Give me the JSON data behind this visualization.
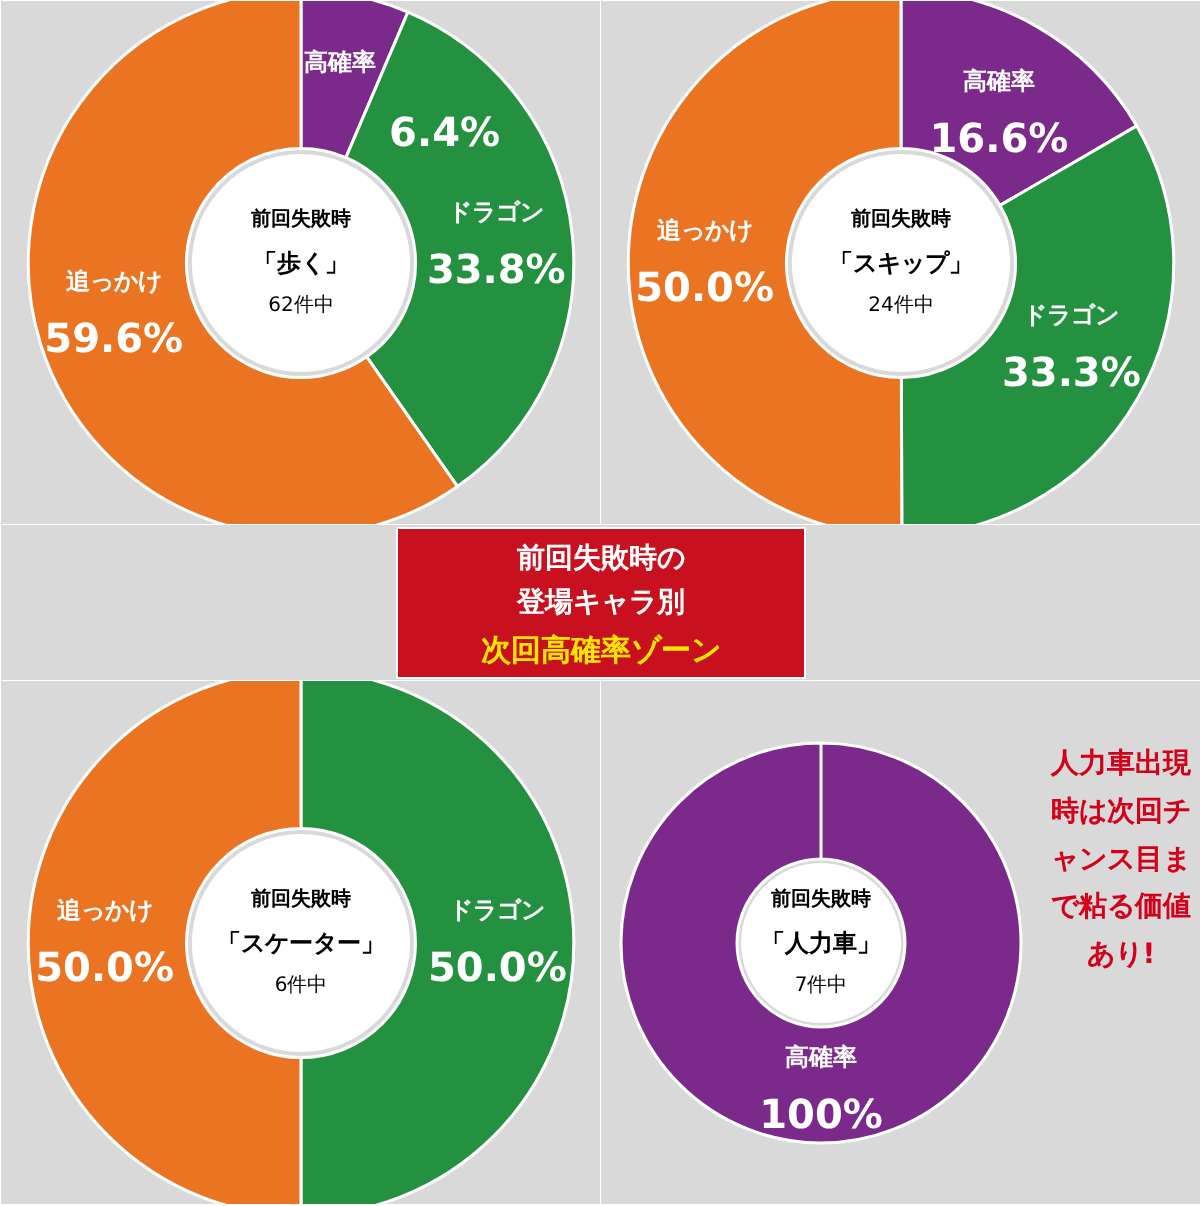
{
  "chart_data": [
    {
      "type": "donut",
      "title": "前回失敗時",
      "subtitle": "「歩く」",
      "annotations": [
        "62件中"
      ],
      "categories": [
        "高確率",
        "ドラゴン",
        "追っかけ"
      ],
      "values": [
        6.4,
        33.8,
        59.6
      ],
      "value_labels": [
        "6.4%",
        "33.8%",
        "59.6%"
      ],
      "colors": [
        "#7b2a8c",
        "#23913f",
        "#ea7422"
      ]
    },
    {
      "type": "donut",
      "title": "前回失敗時",
      "subtitle": "「スキップ」",
      "annotations": [
        "24件中"
      ],
      "categories": [
        "高確率",
        "ドラゴン",
        "追っかけ"
      ],
      "values": [
        16.6,
        33.3,
        50.0
      ],
      "value_labels": [
        "16.6%",
        "33.3%",
        "50.0%"
      ],
      "colors": [
        "#7b2a8c",
        "#23913f",
        "#ea7422"
      ]
    },
    {
      "type": "other",
      "title": "前回失敗時の",
      "subtitle": "登場キャラ別",
      "annotations": [
        "次回高確率ゾーン"
      ]
    },
    {
      "type": "donut",
      "title": "前回失敗時",
      "subtitle": "「スケーター」",
      "annotations": [
        "6件中"
      ],
      "categories": [
        "ドラゴン",
        "追っかけ"
      ],
      "values": [
        50.0,
        50.0
      ],
      "value_labels": [
        "50.0%",
        "50.0%"
      ],
      "colors": [
        "#23913f",
        "#ea7422"
      ]
    },
    {
      "type": "donut",
      "title": "前回失敗時",
      "subtitle": "「人力車」",
      "annotations": [
        "7件中",
        "人力車出現時は次回チャンス目まで粘る価値あり!"
      ],
      "categories": [
        "高確率"
      ],
      "values": [
        100
      ],
      "value_labels": [
        "100%"
      ],
      "colors": [
        "#7b2a8c"
      ]
    }
  ]
}
